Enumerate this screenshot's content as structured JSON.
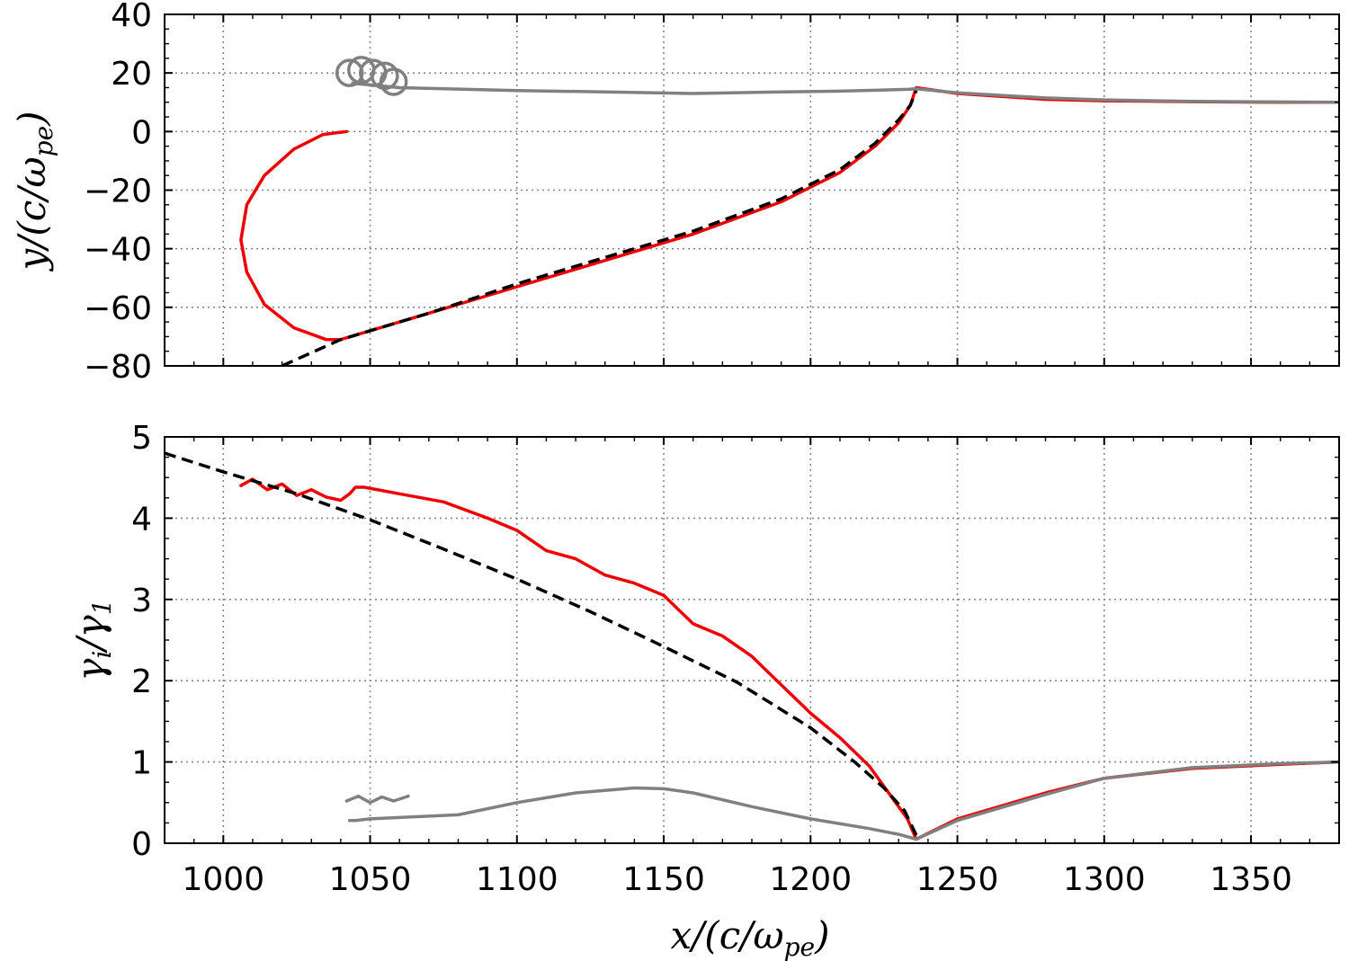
{
  "colors": {
    "particle_red": "#ee0000",
    "particle_gray": "#808080",
    "model_black": "#000000",
    "grid": "#888888"
  },
  "chart_data": [
    {
      "type": "line",
      "panel": "top",
      "xlabel": "",
      "ylabel": "y/(c/ω_pe)",
      "xlim": [
        980,
        1380
      ],
      "ylim": [
        -80,
        40
      ],
      "xticks": [
        1000,
        1050,
        1100,
        1150,
        1200,
        1250,
        1300,
        1350
      ],
      "yticks": [
        -80,
        -60,
        -40,
        -20,
        0,
        20,
        40
      ],
      "ytick_labels": [
        "−80",
        "−60",
        "−40",
        "−20",
        "0",
        "20",
        "40"
      ],
      "grid": true,
      "series": [
        {
          "color": "red",
          "style": "solid",
          "x": [
            1042,
            1034,
            1024,
            1014,
            1008,
            1006,
            1008,
            1014,
            1024,
            1035,
            1040,
            1050,
            1070,
            1100,
            1130,
            1160,
            1190,
            1210,
            1222,
            1230,
            1234,
            1236,
            1250,
            1280,
            1300,
            1330,
            1360,
            1380
          ],
          "y": [
            0,
            -1,
            -6,
            -15,
            -25,
            -37,
            -48,
            -59,
            -67,
            -71,
            -71,
            -68,
            -62,
            -53,
            -44,
            -35,
            -24,
            -14,
            -5,
            3,
            9,
            15,
            13,
            11,
            10.5,
            10.2,
            10,
            10
          ]
        },
        {
          "color": "black",
          "style": "dashed",
          "x": [
            1020,
            1040,
            1070,
            1100,
            1130,
            1160,
            1190,
            1210,
            1222,
            1230,
            1234,
            1236
          ],
          "y": [
            -80,
            -71,
            -62,
            -52,
            -43,
            -34,
            -23,
            -13,
            -4,
            4,
            9,
            14
          ]
        },
        {
          "color": "gray",
          "style": "solid",
          "x": [
            1044,
            1060,
            1080,
            1100,
            1130,
            1160,
            1190,
            1210,
            1225,
            1233,
            1236,
            1250,
            1280,
            1300,
            1330,
            1360,
            1380
          ],
          "y": [
            16.5,
            15,
            14.5,
            14,
            13.5,
            13,
            13.5,
            13.8,
            14.2,
            14.4,
            14.6,
            13.2,
            11.5,
            10.8,
            10.3,
            10.1,
            10
          ]
        },
        {
          "color": "gray",
          "style": "loops",
          "loops_centre_x": [
            1043,
            1047,
            1051,
            1055,
            1058
          ],
          "loops_centre_y": [
            20,
            21,
            20,
            19,
            17
          ]
        }
      ]
    },
    {
      "type": "line",
      "panel": "bottom",
      "xlabel": "x/(c/ω_pe)",
      "ylabel": "γ_i/γ_1",
      "xlim": [
        980,
        1380
      ],
      "ylim": [
        0,
        5
      ],
      "xticks": [
        1000,
        1050,
        1100,
        1150,
        1200,
        1250,
        1300,
        1350
      ],
      "yticks": [
        0,
        1,
        2,
        3,
        4,
        5
      ],
      "grid": true,
      "series": [
        {
          "color": "red",
          "style": "solid",
          "x": [
            1006,
            1010,
            1015,
            1020,
            1025,
            1030,
            1035,
            1040,
            1043,
            1045,
            1048,
            1060,
            1075,
            1090,
            1100,
            1110,
            1120,
            1130,
            1140,
            1150,
            1160,
            1170,
            1180,
            1190,
            1200,
            1210,
            1220,
            1228,
            1233,
            1236,
            1250,
            1280,
            1300,
            1330,
            1360,
            1380
          ],
          "y": [
            4.4,
            4.48,
            4.35,
            4.42,
            4.28,
            4.35,
            4.26,
            4.22,
            4.3,
            4.38,
            4.38,
            4.3,
            4.2,
            4.0,
            3.85,
            3.6,
            3.5,
            3.3,
            3.2,
            3.05,
            2.7,
            2.55,
            2.3,
            1.95,
            1.6,
            1.3,
            0.95,
            0.55,
            0.3,
            0.05,
            0.3,
            0.62,
            0.8,
            0.92,
            0.97,
            1.0
          ]
        },
        {
          "color": "black",
          "style": "dashed",
          "x": [
            980,
            1000,
            1025,
            1050,
            1075,
            1100,
            1125,
            1150,
            1175,
            1200,
            1215,
            1225,
            1232,
            1236
          ],
          "y": [
            4.8,
            4.57,
            4.3,
            3.98,
            3.62,
            3.25,
            2.85,
            2.42,
            1.98,
            1.42,
            1.0,
            0.68,
            0.4,
            0.1
          ]
        },
        {
          "color": "gray",
          "style": "solid",
          "x": [
            1043,
            1045,
            1050,
            1080,
            1100,
            1120,
            1140,
            1150,
            1160,
            1180,
            1200,
            1220,
            1230,
            1236,
            1250,
            1280,
            1300,
            1330,
            1360,
            1380
          ],
          "y": [
            0.28,
            0.28,
            0.3,
            0.35,
            0.5,
            0.62,
            0.68,
            0.67,
            0.62,
            0.45,
            0.3,
            0.18,
            0.11,
            0.05,
            0.28,
            0.6,
            0.8,
            0.93,
            0.98,
            1.0
          ]
        },
        {
          "color": "gray",
          "style": "scribble",
          "x": [
            1042,
            1046,
            1050,
            1054,
            1058,
            1063
          ],
          "y": [
            0.52,
            0.58,
            0.5,
            0.57,
            0.52,
            0.58
          ]
        }
      ]
    }
  ]
}
